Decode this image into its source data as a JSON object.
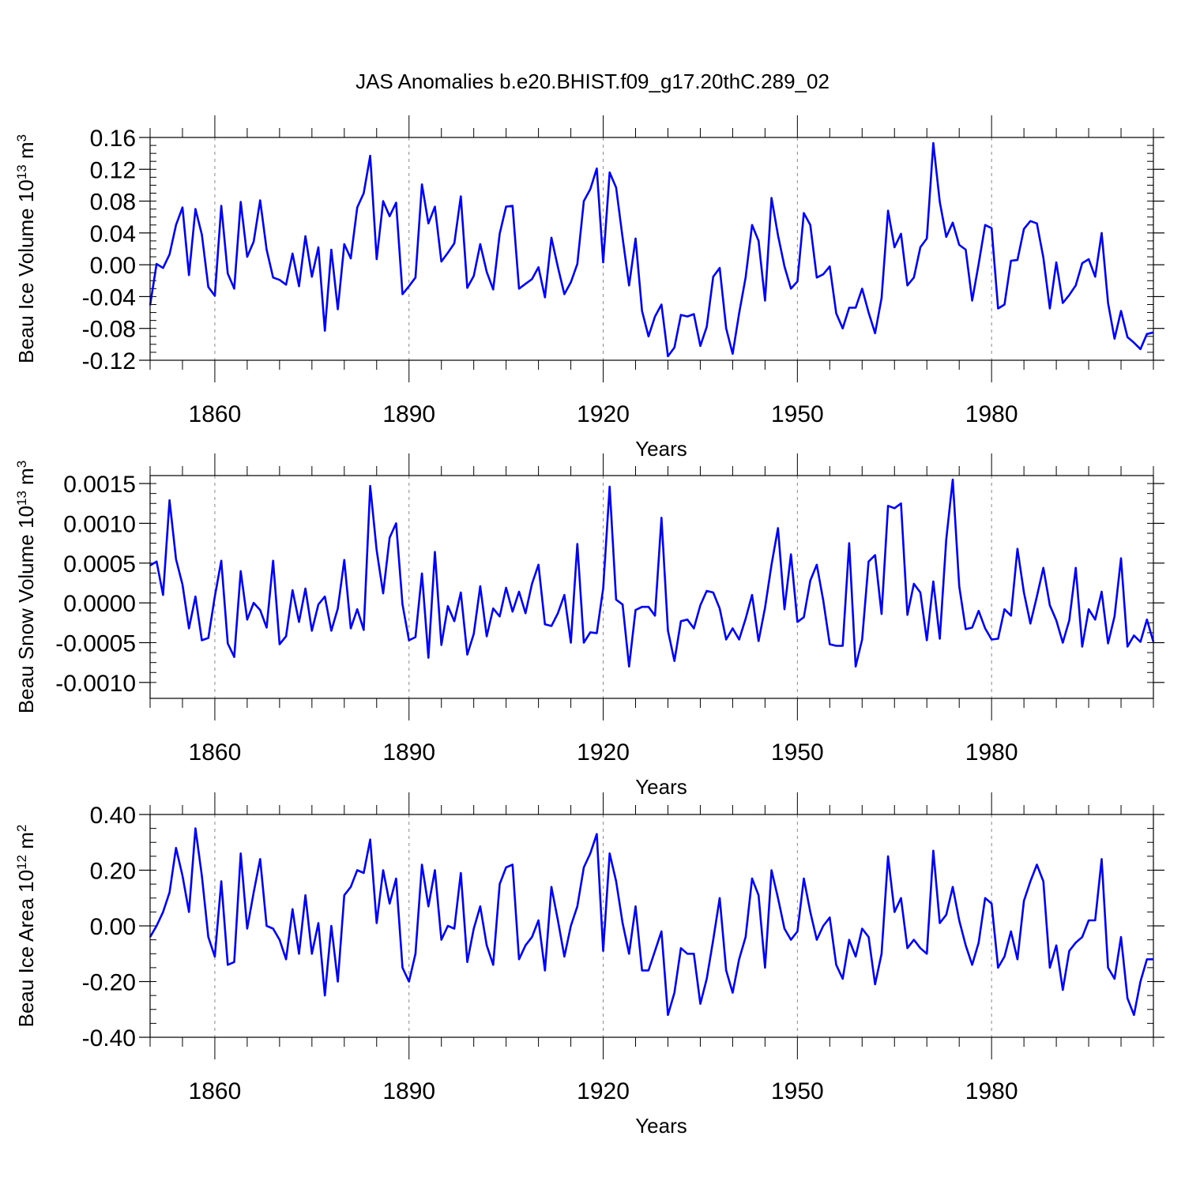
{
  "title": "JAS Anomalies b.e20.BHIST.f09_g17.20thC.289_02",
  "colors": {
    "line": "#0000ff",
    "axis": "#000000",
    "grid": "#888888"
  },
  "chart_data": [
    {
      "type": "line",
      "title": "JAS Anomalies b.e20.BHIST.f09_g17.20thC.289_02",
      "xlabel": "Years",
      "ylabel": "Beau Ice Volume 10",
      "ylabel_exp": "13",
      "ylabel_unit": " m",
      "ylabel_unit_exp": "3",
      "xlim": [
        1850,
        2005
      ],
      "ylim": [
        -0.12,
        0.16
      ],
      "grid": "vertical-dashed",
      "xticks": [
        1860,
        1890,
        1920,
        1950,
        1980
      ],
      "xtick_labels": [
        "1860",
        "1890",
        "1920",
        "1950",
        "1980"
      ],
      "yticks": [
        -0.12,
        -0.08,
        -0.04,
        0.0,
        0.04,
        0.08,
        0.12,
        0.16
      ],
      "ytick_labels": [
        "-0.12",
        "-0.08",
        "-0.04",
        "0.00",
        "0.04",
        "0.08",
        "0.12",
        "0.16"
      ],
      "x_start": 1850,
      "series": [
        {
          "name": "Beau Ice Volume",
          "values": [
            -0.051,
            0.001,
            -0.004,
            0.013,
            0.05,
            0.072,
            -0.013,
            0.07,
            0.038,
            -0.028,
            -0.039,
            0.074,
            -0.011,
            -0.03,
            0.079,
            0.01,
            0.029,
            0.081,
            0.019,
            -0.016,
            -0.019,
            -0.025,
            0.014,
            -0.027,
            0.036,
            -0.015,
            0.022,
            -0.083,
            0.019,
            -0.056,
            0.026,
            0.008,
            0.072,
            0.09,
            0.137,
            0.007,
            0.08,
            0.061,
            0.078,
            -0.037,
            -0.027,
            -0.016,
            0.101,
            0.052,
            0.073,
            0.004,
            0.015,
            0.027,
            0.086,
            -0.029,
            -0.014,
            0.026,
            -0.009,
            -0.031,
            0.039,
            0.073,
            0.074,
            -0.03,
            -0.024,
            -0.018,
            -0.003,
            -0.041,
            0.034,
            -0.003,
            -0.037,
            -0.022,
            0.001,
            0.08,
            0.095,
            0.121,
            0.003,
            0.116,
            0.097,
            0.034,
            -0.026,
            0.033,
            -0.058,
            -0.09,
            -0.065,
            -0.05,
            -0.115,
            -0.104,
            -0.063,
            -0.065,
            -0.062,
            -0.102,
            -0.078,
            -0.015,
            -0.004,
            -0.08,
            -0.112,
            -0.061,
            -0.016,
            0.05,
            0.03,
            -0.045,
            0.084,
            0.037,
            -0.002,
            -0.03,
            -0.021,
            0.065,
            0.05,
            -0.016,
            -0.012,
            -0.002,
            -0.061,
            -0.08,
            -0.054,
            -0.054,
            -0.03,
            -0.06,
            -0.086,
            -0.042,
            0.068,
            0.022,
            0.039,
            -0.026,
            -0.016,
            0.022,
            0.033,
            0.153,
            0.079,
            0.035,
            0.053,
            0.025,
            0.019,
            -0.045,
            0.001,
            0.05,
            0.046,
            -0.055,
            -0.05,
            0.005,
            0.006,
            0.045,
            0.055,
            0.052,
            0.009,
            -0.055,
            0.003,
            -0.048,
            -0.038,
            -0.026,
            0.002,
            0.007,
            -0.015,
            0.04,
            -0.048,
            -0.093,
            -0.058,
            -0.091,
            -0.098,
            -0.106,
            -0.087,
            -0.085
          ]
        }
      ]
    },
    {
      "type": "line",
      "xlabel": "Years",
      "ylabel": "Beau Snow Volume 10",
      "ylabel_exp": "13",
      "ylabel_unit": " m",
      "ylabel_unit_exp": "3",
      "xlim": [
        1850,
        2005
      ],
      "ylim": [
        -0.0012,
        0.0016
      ],
      "grid": "vertical-dashed",
      "xticks": [
        1860,
        1890,
        1920,
        1950,
        1980
      ],
      "xtick_labels": [
        "1860",
        "1890",
        "1920",
        "1950",
        "1980"
      ],
      "yticks": [
        -0.001,
        -0.0005,
        0.0,
        0.0005,
        0.001,
        0.0015
      ],
      "ytick_labels": [
        "-0.0010",
        "-0.0005",
        "0.0000",
        "0.0005",
        "0.0010",
        "0.0015"
      ],
      "x_start": 1850,
      "series": [
        {
          "name": "Beau Snow Volume",
          "values": [
            0.00047,
            0.00052,
            0.0001,
            0.00129,
            0.00055,
            0.00023,
            -0.00032,
            8e-05,
            -0.00047,
            -0.00044,
            8e-05,
            0.00053,
            -0.00051,
            -0.00068,
            0.0004,
            -0.00021,
            0.0,
            -9e-05,
            -0.00031,
            0.00053,
            -0.00052,
            -0.00042,
            0.00016,
            -0.00024,
            0.00018,
            -0.00035,
            -2e-05,
            8e-05,
            -0.00035,
            -7e-05,
            0.00054,
            -0.00032,
            -8e-05,
            -0.00034,
            0.00147,
            0.00066,
            0.00012,
            0.00082,
            0.001,
            -2e-05,
            -0.00047,
            -0.00043,
            0.00037,
            -0.00069,
            0.00064,
            -0.00053,
            -4e-05,
            -0.00023,
            0.00013,
            -0.00065,
            -0.00039,
            0.00021,
            -0.00042,
            -7e-05,
            -0.00017,
            0.00019,
            -0.00011,
            0.00014,
            -0.00013,
            0.00024,
            0.00048,
            -0.00027,
            -0.00029,
            -0.00013,
            0.0001,
            -0.0005,
            0.00074,
            -0.0005,
            -0.00037,
            -0.00038,
            0.00018,
            0.00146,
            4e-05,
            -2e-05,
            -0.0008,
            -9e-05,
            -5e-05,
            -5e-05,
            -0.00016,
            0.00107,
            -0.00035,
            -0.00073,
            -0.00023,
            -0.00021,
            -0.00032,
            -3e-05,
            0.00015,
            0.00013,
            -7e-05,
            -0.00046,
            -0.00032,
            -0.00046,
            -0.0002,
            0.0001,
            -0.00048,
            -6e-05,
            0.00048,
            0.00094,
            -8e-05,
            0.00061,
            -0.00024,
            -0.00018,
            0.00028,
            0.00048,
            3e-05,
            -0.00052,
            -0.00054,
            -0.00054,
            0.00075,
            -0.0008,
            -0.00046,
            0.00052,
            0.0006,
            -0.00014,
            0.00122,
            0.00119,
            0.00125,
            -0.00015,
            0.00024,
            0.00013,
            -0.00047,
            0.00027,
            -0.00045,
            0.0008,
            0.00155,
            0.00021,
            -0.00033,
            -0.00031,
            -0.0001,
            -0.00032,
            -0.00046,
            -0.00045,
            -8e-05,
            -0.00016,
            0.00068,
            0.00013,
            -0.00026,
            8e-05,
            0.00044,
            -3e-05,
            -0.00022,
            -0.0005,
            -0.00022,
            0.00044,
            -0.00055,
            -8e-05,
            -0.00021,
            0.00014,
            -0.00051,
            -0.00017,
            0.00056,
            -0.00055,
            -0.00041,
            -0.00049,
            -0.00021,
            -0.00049
          ]
        }
      ]
    },
    {
      "type": "line",
      "xlabel": "Years",
      "ylabel": "Beau Ice Area 10",
      "ylabel_exp": "12",
      "ylabel_unit": " m",
      "ylabel_unit_exp": "2",
      "xlim": [
        1850,
        2005
      ],
      "ylim": [
        -0.4,
        0.4
      ],
      "grid": "vertical-dashed",
      "xticks": [
        1860,
        1890,
        1920,
        1950,
        1980
      ],
      "xtick_labels": [
        "1860",
        "1890",
        "1920",
        "1950",
        "1980"
      ],
      "yticks": [
        -0.4,
        -0.2,
        0.0,
        0.2,
        0.4
      ],
      "ytick_labels": [
        "-0.40",
        "-0.20",
        "0.00",
        "0.20",
        "0.40"
      ],
      "x_start": 1850,
      "series": [
        {
          "name": "Beau Ice Area",
          "values": [
            -0.04,
            0.0,
            0.05,
            0.12,
            0.28,
            0.18,
            0.05,
            0.35,
            0.18,
            -0.04,
            -0.11,
            0.16,
            -0.14,
            -0.13,
            0.26,
            -0.01,
            0.12,
            0.24,
            0.0,
            -0.01,
            -0.05,
            -0.12,
            0.06,
            -0.1,
            0.11,
            -0.1,
            0.01,
            -0.25,
            0.0,
            -0.2,
            0.11,
            0.14,
            0.2,
            0.19,
            0.31,
            0.01,
            0.2,
            0.08,
            0.17,
            -0.15,
            -0.2,
            -0.1,
            0.22,
            0.07,
            0.2,
            -0.05,
            0.0,
            -0.01,
            0.19,
            -0.13,
            -0.01,
            0.07,
            -0.07,
            -0.14,
            0.15,
            0.21,
            0.22,
            -0.12,
            -0.07,
            -0.04,
            0.02,
            -0.16,
            0.14,
            0.02,
            -0.11,
            0.0,
            0.07,
            0.21,
            0.26,
            0.33,
            -0.09,
            0.26,
            0.16,
            0.01,
            -0.1,
            0.07,
            -0.16,
            -0.16,
            -0.09,
            -0.02,
            -0.32,
            -0.24,
            -0.08,
            -0.1,
            -0.1,
            -0.28,
            -0.19,
            -0.05,
            0.1,
            -0.16,
            -0.24,
            -0.12,
            -0.04,
            0.17,
            0.11,
            -0.15,
            0.2,
            0.1,
            -0.01,
            -0.05,
            -0.02,
            0.17,
            0.05,
            -0.05,
            0.0,
            0.03,
            -0.14,
            -0.19,
            -0.05,
            -0.11,
            -0.01,
            -0.04,
            -0.21,
            -0.1,
            0.25,
            0.05,
            0.1,
            -0.08,
            -0.05,
            -0.08,
            -0.1,
            0.27,
            0.01,
            0.04,
            0.14,
            0.02,
            -0.07,
            -0.14,
            -0.06,
            0.1,
            0.08,
            -0.15,
            -0.11,
            -0.02,
            -0.12,
            0.09,
            0.16,
            0.22,
            0.16,
            -0.15,
            -0.07,
            -0.23,
            -0.09,
            -0.06,
            -0.04,
            0.02,
            0.02,
            0.24,
            -0.15,
            -0.19,
            -0.04,
            -0.26,
            -0.32,
            -0.2,
            -0.12,
            -0.12
          ]
        }
      ]
    }
  ]
}
